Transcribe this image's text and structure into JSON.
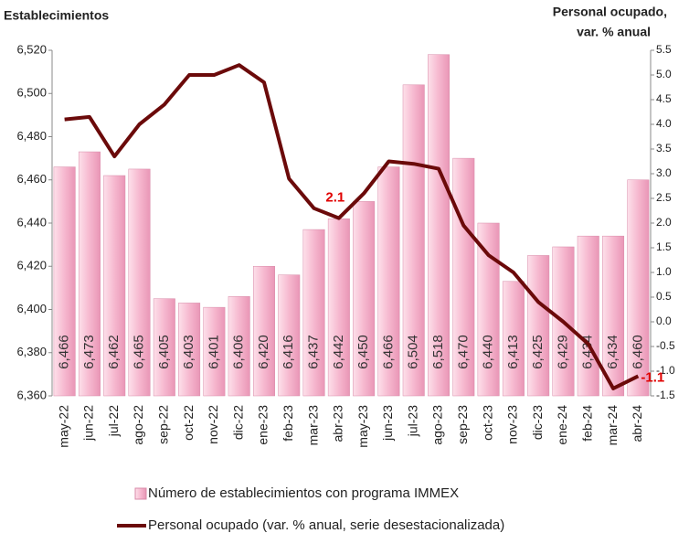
{
  "chart_data": {
    "type": "bar-line",
    "ylabel": "Establecimientos",
    "y2label": [
      "Personal ocupado,",
      "var. % anual"
    ],
    "categories": [
      "may-22",
      "jun-22",
      "jul-22",
      "ago-22",
      "sep-22",
      "oct-22",
      "nov-22",
      "dic-22",
      "ene-23",
      "feb-23",
      "mar-23",
      "abr-23",
      "may-23",
      "jun-23",
      "jul-23",
      "ago-23",
      "sep-23",
      "oct-23",
      "nov-23",
      "dic-23",
      "ene-24",
      "feb-24",
      "mar-24",
      "abr-24"
    ],
    "series": [
      {
        "name": "Número de establecimientos con programa IMMEX",
        "type": "bar",
        "color": "#f6b8cf",
        "values": [
          6466,
          6473,
          6462,
          6465,
          6405,
          6403,
          6401,
          6406,
          6420,
          6416,
          6437,
          6442,
          6450,
          6466,
          6504,
          6518,
          6470,
          6440,
          6413,
          6425,
          6429,
          6434,
          6434,
          6460
        ],
        "value_labels": [
          "6,466",
          "6,473",
          "6,462",
          "6,465",
          "6,405",
          "6,403",
          "6,401",
          "6,406",
          "6,420",
          "6,416",
          "6,437",
          "6,442",
          "6,450",
          "6,466",
          "6,504",
          "6,518",
          "6,470",
          "6,440",
          "6,413",
          "6,425",
          "6,429",
          "6,434",
          "6,434",
          "6,460"
        ]
      },
      {
        "name": "Personal ocupado (var. % anual, serie desestacionalizada)",
        "type": "line",
        "axis": "y2",
        "color": "#6b0a0a",
        "values": [
          4.1,
          4.15,
          3.35,
          4.0,
          4.4,
          5.0,
          5.0,
          5.2,
          4.85,
          2.9,
          2.3,
          2.1,
          2.6,
          3.25,
          3.2,
          3.1,
          1.95,
          1.35,
          1.0,
          0.4,
          0.0,
          -0.45,
          -1.35,
          -1.1
        ],
        "value_labels": [
          null,
          null,
          null,
          null,
          null,
          null,
          null,
          null,
          null,
          null,
          null,
          "2.1",
          null,
          null,
          null,
          null,
          null,
          null,
          null,
          null,
          null,
          null,
          null,
          "-1.1"
        ]
      }
    ],
    "ylim": [
      6360,
      6520
    ],
    "yticks": [
      {
        "value": 6360,
        "label": "6,360"
      },
      {
        "value": 6380,
        "label": "6,380"
      },
      {
        "value": 6400,
        "label": "6,400"
      },
      {
        "value": 6420,
        "label": "6,420"
      },
      {
        "value": 6440,
        "label": "6,440"
      },
      {
        "value": 6460,
        "label": "6,460"
      },
      {
        "value": 6480,
        "label": "6,480"
      },
      {
        "value": 6500,
        "label": "6,500"
      },
      {
        "value": 6520,
        "label": "6,520"
      }
    ],
    "y2lim": [
      -1.5,
      5.5
    ],
    "y2ticks": [
      -1.5,
      {
        "value": -1,
        "label": "-1.0"
      },
      -0.5,
      {
        "value": 0,
        "label": "0.0"
      },
      0.5,
      {
        "value": 1,
        "label": "1.0"
      },
      1.5,
      {
        "value": 2,
        "label": "2.0"
      },
      2.5,
      {
        "value": 3,
        "label": "3.0"
      },
      3.5,
      {
        "value": 4,
        "label": "4.0"
      },
      4.5,
      {
        "value": 5,
        "label": "5.0"
      },
      5.5
    ],
    "grid": false
  }
}
